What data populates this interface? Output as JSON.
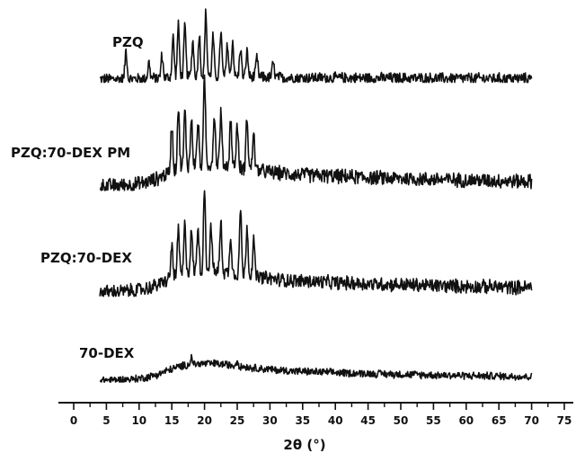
{
  "chart_data": {
    "type": "line",
    "xlabel": "2θ (°)",
    "xlim": [
      0,
      75
    ],
    "x_ticks": [
      "0",
      "5",
      "10",
      "15",
      "20",
      "25",
      "30",
      "35",
      "40",
      "45",
      "50",
      "55",
      "60",
      "65",
      "70",
      "75"
    ],
    "x_range_measured": [
      4,
      70
    ],
    "grid": false,
    "series": [
      {
        "name": "PZQ",
        "peaks": [
          {
            "x": 8.0,
            "h": 0.45
          },
          {
            "x": 11.5,
            "h": 0.25
          },
          {
            "x": 13.5,
            "h": 0.35
          },
          {
            "x": 15.2,
            "h": 0.62
          },
          {
            "x": 16.0,
            "h": 0.8
          },
          {
            "x": 17.0,
            "h": 0.78
          },
          {
            "x": 18.2,
            "h": 0.55
          },
          {
            "x": 19.2,
            "h": 0.65
          },
          {
            "x": 20.2,
            "h": 1.0
          },
          {
            "x": 21.3,
            "h": 0.62
          },
          {
            "x": 22.5,
            "h": 0.7
          },
          {
            "x": 23.5,
            "h": 0.5
          },
          {
            "x": 24.3,
            "h": 0.55
          },
          {
            "x": 25.5,
            "h": 0.45
          },
          {
            "x": 26.5,
            "h": 0.4
          },
          {
            "x": 28.0,
            "h": 0.3
          },
          {
            "x": 30.5,
            "h": 0.22
          }
        ],
        "halo": 0.05,
        "noise": 0.12
      },
      {
        "name": "PZQ:70-DEX PM",
        "peaks": [
          {
            "x": 15.0,
            "h": 0.55
          },
          {
            "x": 16.0,
            "h": 0.72
          },
          {
            "x": 17.0,
            "h": 0.65
          },
          {
            "x": 18.0,
            "h": 0.55
          },
          {
            "x": 19.0,
            "h": 0.5
          },
          {
            "x": 20.0,
            "h": 1.0
          },
          {
            "x": 21.5,
            "h": 0.6
          },
          {
            "x": 22.5,
            "h": 0.62
          },
          {
            "x": 24.0,
            "h": 0.55
          },
          {
            "x": 25.0,
            "h": 0.5
          },
          {
            "x": 26.5,
            "h": 0.62
          },
          {
            "x": 27.5,
            "h": 0.45
          }
        ],
        "halo": 0.3,
        "noise": 0.12
      },
      {
        "name": "PZQ:70-DEX",
        "peaks": [
          {
            "x": 15.0,
            "h": 0.4
          },
          {
            "x": 16.0,
            "h": 0.55
          },
          {
            "x": 17.0,
            "h": 0.6
          },
          {
            "x": 18.0,
            "h": 0.5
          },
          {
            "x": 19.0,
            "h": 0.55
          },
          {
            "x": 20.0,
            "h": 1.0
          },
          {
            "x": 21.0,
            "h": 0.55
          },
          {
            "x": 22.5,
            "h": 0.6
          },
          {
            "x": 24.0,
            "h": 0.45
          },
          {
            "x": 25.5,
            "h": 0.78
          },
          {
            "x": 26.5,
            "h": 0.6
          },
          {
            "x": 27.5,
            "h": 0.45
          }
        ],
        "halo": 0.3,
        "noise": 0.12
      },
      {
        "name": "70-DEX",
        "peaks": [
          {
            "x": 18.0,
            "h": 0.2
          },
          {
            "x": 25.0,
            "h": 0.15
          }
        ],
        "halo": 0.55,
        "noise": 0.15
      }
    ]
  }
}
